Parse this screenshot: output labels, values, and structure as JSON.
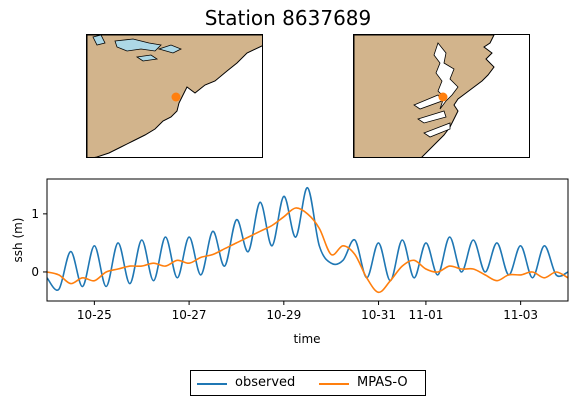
{
  "title": "Station 8637689",
  "maps": {
    "land_color": "#d2b48c",
    "water_color": "#ffffff",
    "lake_color": "#add8e6",
    "marker_color": "#ff7f0e"
  },
  "chart_data": {
    "type": "line",
    "xlabel": "time",
    "ylabel": "ssh (m)",
    "x_range": [
      "10-24",
      "11-04"
    ],
    "ylim": [
      -0.5,
      1.6
    ],
    "xtick_labels": [
      "10-25",
      "10-27",
      "10-29",
      "10-31",
      "11-01",
      "11-03"
    ],
    "ytick_labels": [
      "0",
      "1"
    ],
    "grid": false,
    "legend_position": "bottom-center",
    "series": [
      {
        "name": "observed",
        "color": "#1f77b4",
        "points": [
          [
            "10-24",
            -0.1
          ],
          [
            "10-24 06:00",
            -0.3
          ],
          [
            "10-24 12:00",
            0.35
          ],
          [
            "10-24 18:00",
            -0.25
          ],
          [
            "10-25",
            0.45
          ],
          [
            "10-25 06:00",
            -0.25
          ],
          [
            "10-25 12:00",
            0.5
          ],
          [
            "10-25 18:00",
            -0.2
          ],
          [
            "10-26",
            0.55
          ],
          [
            "10-26 06:00",
            -0.15
          ],
          [
            "10-26 12:00",
            0.6
          ],
          [
            "10-26 18:00",
            -0.1
          ],
          [
            "10-27",
            0.6
          ],
          [
            "10-27 06:00",
            -0.05
          ],
          [
            "10-27 12:00",
            0.7
          ],
          [
            "10-27 18:00",
            0.1
          ],
          [
            "10-28",
            0.9
          ],
          [
            "10-28 06:00",
            0.35
          ],
          [
            "10-28 12:00",
            1.2
          ],
          [
            "10-28 18:00",
            0.45
          ],
          [
            "10-29",
            1.3
          ],
          [
            "10-29 06:00",
            0.6
          ],
          [
            "10-29 12:00",
            1.45
          ],
          [
            "10-29 18:00",
            0.45
          ],
          [
            "10-30",
            0.15
          ],
          [
            "10-30 06:00",
            0.2
          ],
          [
            "10-30 12:00",
            0.55
          ],
          [
            "10-30 18:00",
            -0.1
          ],
          [
            "10-31",
            0.5
          ],
          [
            "10-31 06:00",
            -0.15
          ],
          [
            "10-31 12:00",
            0.55
          ],
          [
            "10-31 18:00",
            -0.1
          ],
          [
            "11-01",
            0.5
          ],
          [
            "11-01 06:00",
            -0.05
          ],
          [
            "11-01 12:00",
            0.6
          ],
          [
            "11-01 18:00",
            0.0
          ],
          [
            "11-02",
            0.55
          ],
          [
            "11-02 06:00",
            0.0
          ],
          [
            "11-02 12:00",
            0.5
          ],
          [
            "11-02 18:00",
            -0.05
          ],
          [
            "11-03",
            0.45
          ],
          [
            "11-03 06:00",
            -0.1
          ],
          [
            "11-03 12:00",
            0.45
          ],
          [
            "11-03 18:00",
            -0.05
          ],
          [
            "11-04",
            0.0
          ]
        ]
      },
      {
        "name": "MPAS-O",
        "color": "#ff7f0e",
        "points": [
          [
            "10-24",
            0.0
          ],
          [
            "10-24 06:00",
            -0.05
          ],
          [
            "10-24 12:00",
            -0.2
          ],
          [
            "10-24 18:00",
            -0.1
          ],
          [
            "10-25",
            -0.15
          ],
          [
            "10-25 06:00",
            0.0
          ],
          [
            "10-25 12:00",
            0.05
          ],
          [
            "10-25 18:00",
            0.1
          ],
          [
            "10-26",
            0.1
          ],
          [
            "10-26 06:00",
            0.15
          ],
          [
            "10-26 12:00",
            0.1
          ],
          [
            "10-26 18:00",
            0.2
          ],
          [
            "10-27",
            0.15
          ],
          [
            "10-27 06:00",
            0.25
          ],
          [
            "10-27 12:00",
            0.3
          ],
          [
            "10-27 18:00",
            0.4
          ],
          [
            "10-28",
            0.5
          ],
          [
            "10-28 06:00",
            0.6
          ],
          [
            "10-28 12:00",
            0.7
          ],
          [
            "10-28 18:00",
            0.8
          ],
          [
            "10-29",
            0.95
          ],
          [
            "10-29 06:00",
            1.1
          ],
          [
            "10-29 12:00",
            1.0
          ],
          [
            "10-29 18:00",
            0.75
          ],
          [
            "10-30",
            0.3
          ],
          [
            "10-30 06:00",
            0.45
          ],
          [
            "10-30 12:00",
            0.3
          ],
          [
            "10-30 18:00",
            -0.1
          ],
          [
            "10-31",
            -0.35
          ],
          [
            "10-31 06:00",
            -0.15
          ],
          [
            "10-31 12:00",
            0.1
          ],
          [
            "10-31 18:00",
            0.2
          ],
          [
            "11-01",
            0.05
          ],
          [
            "11-01 06:00",
            0.0
          ],
          [
            "11-01 12:00",
            0.1
          ],
          [
            "11-01 18:00",
            0.05
          ],
          [
            "11-02",
            0.05
          ],
          [
            "11-02 06:00",
            -0.05
          ],
          [
            "11-02 12:00",
            -0.15
          ],
          [
            "11-02 18:00",
            -0.05
          ],
          [
            "11-03",
            -0.05
          ],
          [
            "11-03 06:00",
            0.0
          ],
          [
            "11-03 12:00",
            -0.1
          ],
          [
            "11-03 18:00",
            0.0
          ],
          [
            "11-04",
            -0.1
          ]
        ]
      }
    ]
  }
}
